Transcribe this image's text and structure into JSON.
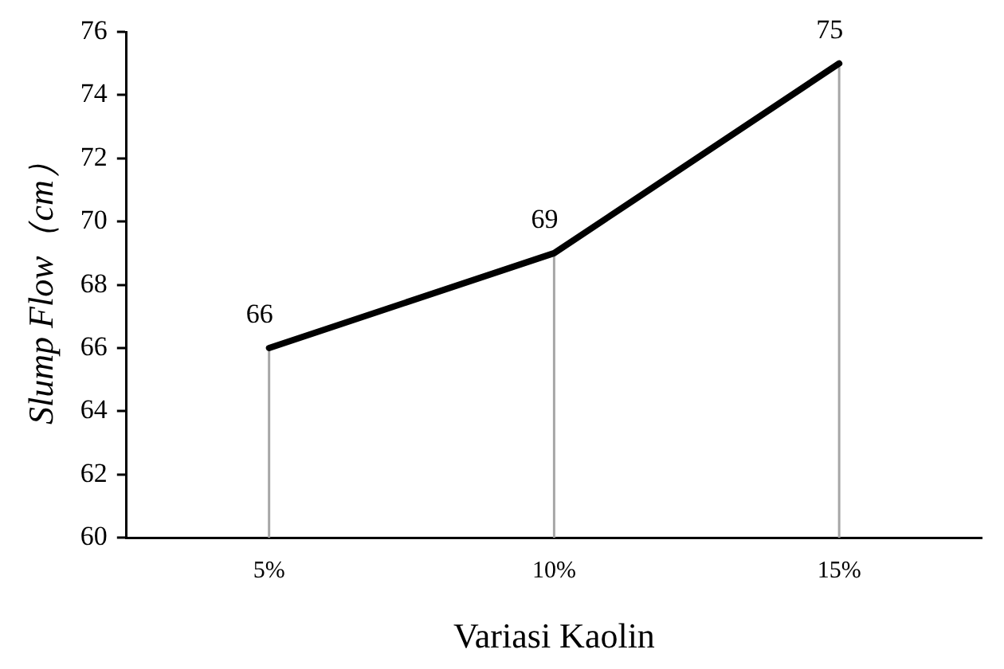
{
  "chart_data": {
    "type": "line",
    "xlabel": "Variasi Kaolin",
    "ylabel": "Slump Flow（cm）",
    "categories": [
      "5%",
      "10%",
      "15%"
    ],
    "series": [
      {
        "color": "#000000",
        "values": [
          66,
          69,
          75
        ]
      }
    ],
    "ylim": [
      60,
      76
    ],
    "yticks": [
      60,
      62,
      64,
      66,
      68,
      70,
      72,
      74,
      76
    ],
    "grid": "x",
    "legend": false,
    "marker": "none",
    "data_labels": true
  }
}
